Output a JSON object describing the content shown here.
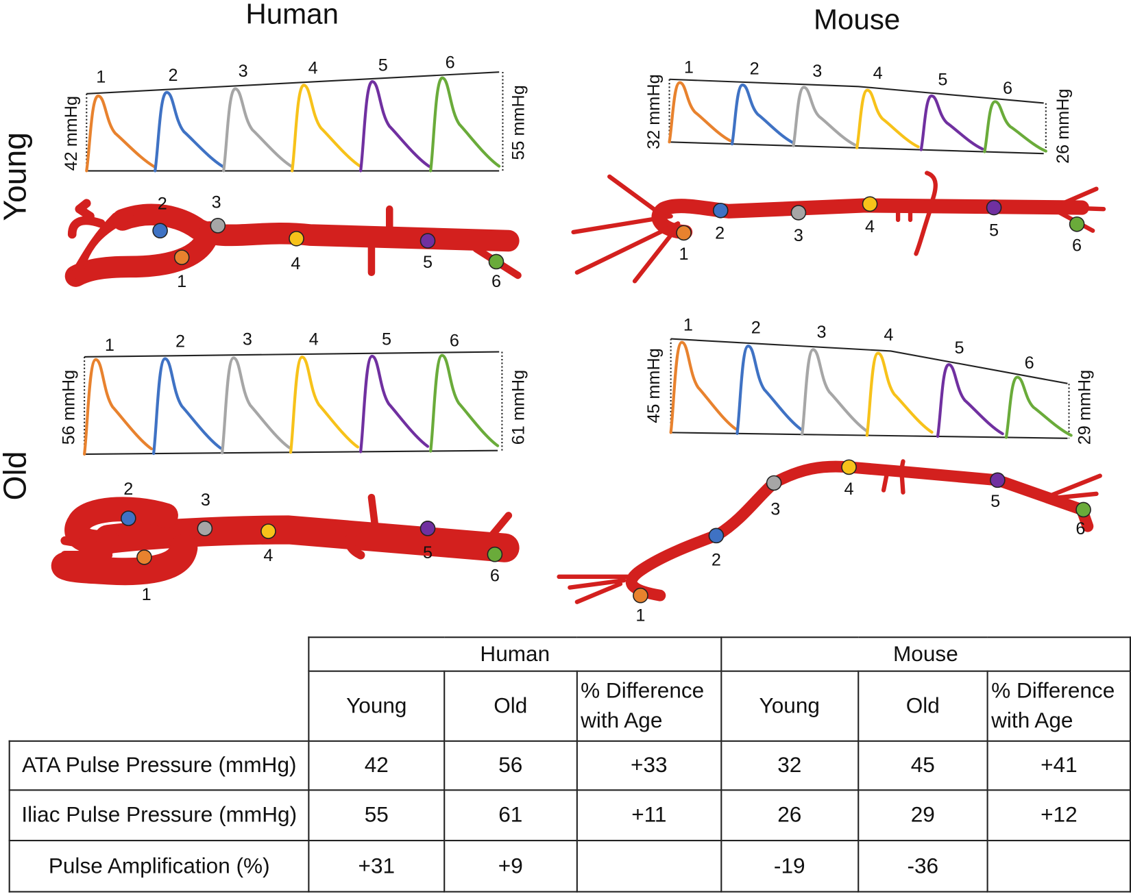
{
  "figure": {
    "columns": [
      "Human",
      "Mouse"
    ],
    "rows": [
      "Young",
      "Old"
    ],
    "sites": [
      "1",
      "2",
      "3",
      "4",
      "5",
      "6"
    ],
    "panels": [
      {
        "start_pressure": "42 mmHg",
        "end_pressure": "55 mmHg"
      },
      {
        "start_pressure": "32 mmHg",
        "end_pressure": "26 mmHg"
      },
      {
        "start_pressure": "56 mmHg",
        "end_pressure": "61 mmHg"
      },
      {
        "start_pressure": "45 mmHg",
        "end_pressure": "29 mmHg"
      }
    ]
  },
  "table": {
    "groups": [
      "Human",
      "Mouse"
    ],
    "subheaders": [
      "Young",
      "Old",
      "% Difference with Age"
    ],
    "rows": [
      {
        "label": "ATA Pulse Pressure (mmHg)",
        "human": [
          42,
          56,
          "+33"
        ],
        "mouse": [
          32,
          45,
          "+41"
        ]
      },
      {
        "label": "Iliac Pulse Pressure (mmHg)",
        "human": [
          55,
          61,
          "+11"
        ],
        "mouse": [
          26,
          29,
          "+12"
        ]
      },
      {
        "label": "Pulse Amplification (%)",
        "human": [
          "+31",
          "+9"
        ],
        "mouse": [
          -19,
          -36
        ]
      }
    ]
  }
}
